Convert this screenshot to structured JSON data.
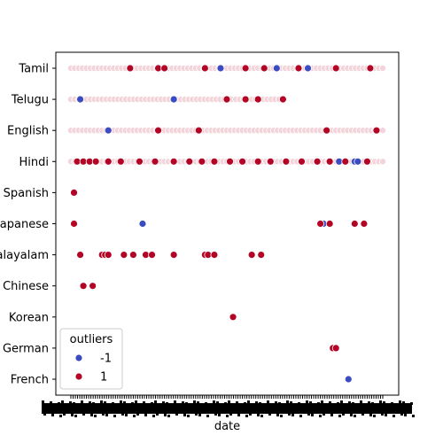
{
  "chart_data": {
    "type": "scatter",
    "title": "",
    "xlabel": "date",
    "ylabel": "",
    "grid": false,
    "y_categories": [
      "Tamil",
      "Telugu",
      "English",
      "Hindi",
      "Spanish",
      "Japanese",
      "Malayalam",
      "Chinese",
      "Korean",
      "German",
      "French"
    ],
    "legend": {
      "title": "outliers",
      "placement": "lower-left",
      "entries": [
        {
          "label": "-1",
          "color": "#3b4cc0"
        },
        {
          "label": "1",
          "color": "#b40426"
        }
      ]
    },
    "colors": {
      "inlier": "#b40426",
      "outlier": "#3b4cc0",
      "faint": "#f2d4da"
    },
    "x_note": "Date axis: tick labels overlap into an illegible band; points are listed by position index from 0 (earliest) to 100 (latest).",
    "series": [
      {
        "name": "-1",
        "points": [
          {
            "y": "Tamil",
            "x": 48
          },
          {
            "y": "Tamil",
            "x": 66
          },
          {
            "y": "Tamil",
            "x": 76
          },
          {
            "y": "Telugu",
            "x": 3
          },
          {
            "y": "Telugu",
            "x": 33
          },
          {
            "y": "English",
            "x": 12
          },
          {
            "y": "Hindi",
            "x": 86
          },
          {
            "y": "Hindi",
            "x": 91
          },
          {
            "y": "Hindi",
            "x": 92
          },
          {
            "y": "Japanese",
            "x": 23
          },
          {
            "y": "Japanese",
            "x": 81
          },
          {
            "y": "French",
            "x": 89
          }
        ]
      },
      {
        "name": "1",
        "points": [
          {
            "y": "Tamil",
            "x": 19
          },
          {
            "y": "Tamil",
            "x": 28
          },
          {
            "y": "Tamil",
            "x": 30
          },
          {
            "y": "Tamil",
            "x": 43
          },
          {
            "y": "Tamil",
            "x": 56
          },
          {
            "y": "Tamil",
            "x": 62
          },
          {
            "y": "Tamil",
            "x": 73
          },
          {
            "y": "Tamil",
            "x": 85
          },
          {
            "y": "Tamil",
            "x": 96
          },
          {
            "y": "Telugu",
            "x": 50
          },
          {
            "y": "Telugu",
            "x": 56
          },
          {
            "y": "Telugu",
            "x": 60
          },
          {
            "y": "Telugu",
            "x": 68
          },
          {
            "y": "English",
            "x": 28
          },
          {
            "y": "English",
            "x": 41
          },
          {
            "y": "English",
            "x": 82
          },
          {
            "y": "English",
            "x": 98
          },
          {
            "y": "Hindi",
            "x": 2
          },
          {
            "y": "Hindi",
            "x": 4
          },
          {
            "y": "Hindi",
            "x": 6
          },
          {
            "y": "Hindi",
            "x": 8
          },
          {
            "y": "Hindi",
            "x": 12
          },
          {
            "y": "Hindi",
            "x": 16
          },
          {
            "y": "Hindi",
            "x": 22
          },
          {
            "y": "Hindi",
            "x": 27
          },
          {
            "y": "Hindi",
            "x": 33
          },
          {
            "y": "Hindi",
            "x": 38
          },
          {
            "y": "Hindi",
            "x": 42
          },
          {
            "y": "Hindi",
            "x": 46
          },
          {
            "y": "Hindi",
            "x": 51
          },
          {
            "y": "Hindi",
            "x": 55
          },
          {
            "y": "Hindi",
            "x": 60
          },
          {
            "y": "Hindi",
            "x": 64
          },
          {
            "y": "Hindi",
            "x": 69
          },
          {
            "y": "Hindi",
            "x": 74
          },
          {
            "y": "Hindi",
            "x": 79
          },
          {
            "y": "Hindi",
            "x": 83
          },
          {
            "y": "Hindi",
            "x": 88
          },
          {
            "y": "Hindi",
            "x": 95
          },
          {
            "y": "Spanish",
            "x": 1
          },
          {
            "y": "Japanese",
            "x": 1
          },
          {
            "y": "Japanese",
            "x": 80
          },
          {
            "y": "Japanese",
            "x": 83
          },
          {
            "y": "Japanese",
            "x": 91
          },
          {
            "y": "Japanese",
            "x": 94
          },
          {
            "y": "Malayalam",
            "x": 3
          },
          {
            "y": "Malayalam",
            "x": 10
          },
          {
            "y": "Malayalam",
            "x": 11
          },
          {
            "y": "Malayalam",
            "x": 12
          },
          {
            "y": "Malayalam",
            "x": 17
          },
          {
            "y": "Malayalam",
            "x": 20
          },
          {
            "y": "Malayalam",
            "x": 24
          },
          {
            "y": "Malayalam",
            "x": 26
          },
          {
            "y": "Malayalam",
            "x": 33
          },
          {
            "y": "Malayalam",
            "x": 43
          },
          {
            "y": "Malayalam",
            "x": 44
          },
          {
            "y": "Malayalam",
            "x": 46
          },
          {
            "y": "Malayalam",
            "x": 58
          },
          {
            "y": "Malayalam",
            "x": 61
          },
          {
            "y": "Chinese",
            "x": 4
          },
          {
            "y": "Chinese",
            "x": 7
          },
          {
            "y": "Korean",
            "x": 52
          },
          {
            "y": "German",
            "x": 84
          },
          {
            "y": "German",
            "x": 85
          }
        ]
      }
    ],
    "dense_rows": [
      {
        "y": "Tamil",
        "from": 0,
        "to": 100
      },
      {
        "y": "Telugu",
        "from": 0,
        "to": 68
      },
      {
        "y": "English",
        "from": 0,
        "to": 100
      },
      {
        "y": "Hindi",
        "from": 0,
        "to": 100
      }
    ]
  }
}
